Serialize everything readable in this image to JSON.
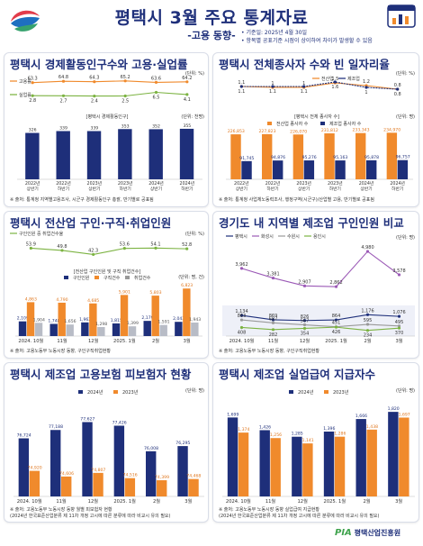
{
  "header": {
    "title": "평택시 3월 주요 통계자료",
    "subtitle": "-고용 동향-",
    "meta_lines": [
      "• 기준일: 2025년 4월 30일",
      "• 항목별 공표기준 시점이 상이하여 차이가 발생할 수 있음"
    ]
  },
  "brand": {
    "mark": "PIA",
    "name": "평택산업진흥원"
  },
  "colors": {
    "navy": "#1e2f7a",
    "orange": "#f08a2c",
    "purple": "#9b59b6",
    "green": "#7cb342",
    "grey": "#999999"
  },
  "panels": {
    "p1": {
      "title": "평택시 경제활동인구수와 고용·실업률",
      "unit": "(단위: %)",
      "unit2": "(단위: 천명)",
      "subcap": "[평택시 경제활동인구]",
      "footnote": "※ 출처: 통계청 지역별고용조사, 시군구 경제활동인구 총괄, 반기별로 공표됨"
    },
    "p2": {
      "title": "평택시 전체종사자 수와 빈 일자리율",
      "unit": "(단위: %)",
      "unit2": "(단위: 명)",
      "subcap": "[평택시 전체 종사자 수]",
      "footnote": "※ 출처: 통계청 사업체노동력조사, 행정구역(시군구)/산업별 고용, 반기별로 공표됨"
    },
    "p3": {
      "title": "평택시 전산업 구인·구직·취업인원",
      "unit": "(단위: %)",
      "unit2": "(단위: 명, 건)",
      "subcap": "[전산업 구인인원 및 구직 취업건수]",
      "footnote": "※ 출처: 고용노동부 노동시장 동향, 구인구직취업현황"
    },
    "p4": {
      "title": "경기도 내 지역별 제조업 구인인원 비교",
      "unit": "(단위: 명)",
      "footnote": "※ 출처: 고용노동부 노동시장 동향, 구인구직취업현황"
    },
    "p5": {
      "title": "평택시 제조업 고용보험 피보험자 현황",
      "unit": "(단위: 명)",
      "footnote": "※ 출처: 고용노동부 노동시장 동향 월별 피보험자 현황",
      "footnote2": "(2024년 한국표준산업분류 제 11차 개정 고시에 따른 분류에 따라 비교시 유의 필요)"
    },
    "p6": {
      "title": "평택시 제조업 실업급여 지급자수",
      "unit": "(단위: 명)",
      "footnote": "※ 출처: 고용노동부 노동시장 동향 실업급여 지급현황",
      "footnote2": "(2024년 한국표준산업분류 제 11차 개정 고시에 따른 분류에 따라 비교시 유의 필요)"
    }
  },
  "chart_data": [
    {
      "type": "bar",
      "title": "평택시 경제활동인구수와 고용·실업률",
      "categories": [
        "2022년 상반기",
        "2022년 하반기",
        "2023년 상반기",
        "2023년 하반기",
        "2024년 상반기",
        "2024년 하반기"
      ],
      "series": [
        {
          "name": "고용률",
          "type": "line",
          "values": [
            63.3,
            64.8,
            64.3,
            65.2,
            63.6,
            64.2
          ]
        },
        {
          "name": "실업률",
          "type": "line",
          "values": [
            2.8,
            2.7,
            2.4,
            2.5,
            6.5,
            4.1
          ]
        },
        {
          "name": "경제활동인구",
          "type": "bar",
          "values": [
            326,
            339,
            339,
            353,
            352,
            355
          ]
        }
      ]
    },
    {
      "type": "bar",
      "title": "평택시 전체종사자 수와 빈 일자리율",
      "categories": [
        "2022년 상반기",
        "2022년 하반기",
        "2023년 상반기",
        "2023년 하반기",
        "2024년 상반기",
        "2024년 하반기"
      ],
      "series": [
        {
          "name": "전산업",
          "type": "line",
          "values": [
            1.1,
            1.0,
            1.0,
            1.5,
            1.2,
            0.8
          ]
        },
        {
          "name": "제조업",
          "type": "line",
          "values": [
            1.1,
            1.1,
            1.1,
            1.6,
            1.0,
            0.8
          ]
        },
        {
          "name": "전산업 종사자 수",
          "type": "bar",
          "values": [
            226853,
            227823,
            226070,
            231812,
            233343,
            234970
          ]
        },
        {
          "name": "제조업 종사자 수",
          "type": "bar",
          "values": [
            91745,
            94876,
            95276,
            95163,
            95878,
            96757
          ]
        }
      ]
    },
    {
      "type": "bar",
      "title": "평택시 전산업 구인·구직·취업인원",
      "categories": [
        "2024. 10월",
        "11월",
        "12월",
        "2025. 1월",
        "2월",
        "3월"
      ],
      "series": [
        {
          "name": "구인인원 중 취업건수율",
          "type": "line",
          "values": [
            53.9,
            49.8,
            42.3,
            53.6,
            54.1,
            52.8
          ]
        },
        {
          "name": "구인인원",
          "type": "bar",
          "values": [
            2109,
            1748,
            1962,
            1815,
            2179,
            2043
          ]
        },
        {
          "name": "구직건수",
          "type": "bar",
          "values": [
            4863,
            4790,
            4685,
            5901,
            5803,
            6823
          ]
        },
        {
          "name": "취업건수",
          "type": "bar",
          "values": [
            1904,
            1656,
            1298,
            1399,
            1591,
            1943
          ]
        }
      ]
    },
    {
      "type": "line",
      "title": "경기도 내 지역별 제조업 구인인원 비교",
      "categories": [
        "2024. 10월",
        "11월",
        "12월",
        "2025. 1월",
        "2월",
        "3월"
      ],
      "series": [
        {
          "name": "평택시",
          "values": [
            1134,
            869,
            826,
            864,
            1176,
            1076
          ]
        },
        {
          "name": "화성시",
          "values": [
            3962,
            3381,
            2907,
            2862,
            4980,
            3578
          ]
        },
        {
          "name": "수원시",
          "values": [
            863,
            687,
            567,
            451,
            595,
            495
          ]
        },
        {
          "name": "용인시",
          "values": [
            408,
            282,
            354,
            426,
            234,
            370
          ]
        }
      ]
    },
    {
      "type": "bar",
      "title": "평택시 제조업 고용보험 피보험자 현황",
      "categories": [
        "2024. 10월",
        "11월",
        "12월",
        "2025. 1월",
        "2월",
        "3월"
      ],
      "series": [
        {
          "name": "2024년",
          "values": [
            76724,
            77188,
            77627,
            77426,
            76008,
            76295
          ]
        },
        {
          "name": "2023년",
          "values": [
            74920,
            74606,
            74807,
            74516,
            74399,
            74468
          ]
        }
      ]
    },
    {
      "type": "bar",
      "title": "평택시 제조업 실업급여 지급자수",
      "categories": [
        "2024. 10월",
        "11월",
        "12월",
        "2025. 1월",
        "2월",
        "3월"
      ],
      "series": [
        {
          "name": "2024년",
          "values": [
            1699,
            1426,
            1285,
            1396,
            1666,
            1820
          ]
        },
        {
          "name": "2023년",
          "values": [
            1374,
            1256,
            1141,
            1286,
            1438,
            1697
          ]
        }
      ]
    }
  ]
}
